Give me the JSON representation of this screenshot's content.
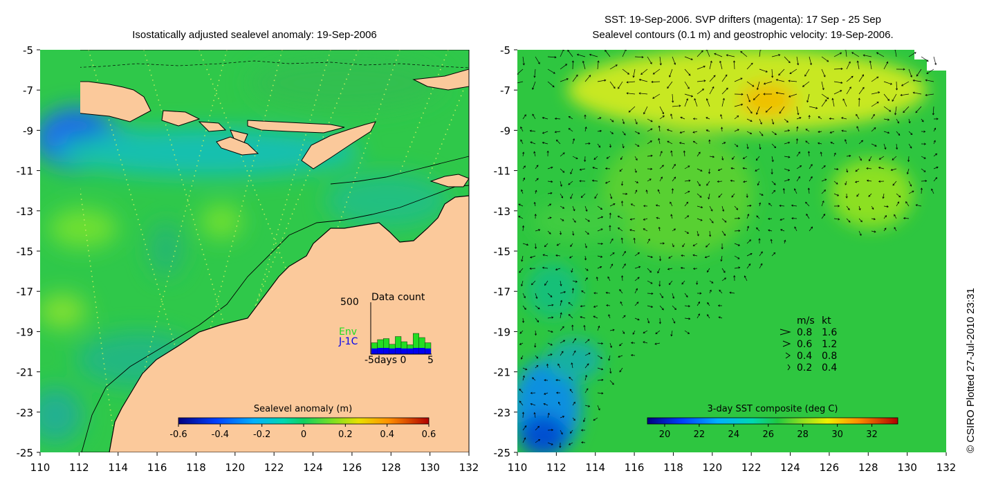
{
  "left_panel": {
    "title": "Isostatically adjusted sealevel anomaly: 19-Sep-2006",
    "x_ticks": [
      "110",
      "112",
      "114",
      "116",
      "118",
      "120",
      "122",
      "124",
      "126",
      "128",
      "130",
      "132"
    ],
    "y_ticks": [
      "-5",
      "-7",
      "-9",
      "-11",
      "-13",
      "-15",
      "-17",
      "-19",
      "-21",
      "-23",
      "-25"
    ],
    "colorbar": {
      "title": "Sealevel anomaly (m)",
      "ticks": [
        "-0.6",
        "-0.4",
        "-0.2",
        "0",
        "0.2",
        "0.4",
        "0.6"
      ],
      "range": [
        -0.6,
        0.6
      ]
    },
    "data_count": {
      "title": "Data count",
      "ymax_label": "500",
      "xlabel": "-5days 0",
      "xmax_label": "5",
      "series": [
        {
          "name": "Env",
          "color": "#22dd22"
        },
        {
          "name": "J-1C",
          "color": "#0000ee"
        }
      ],
      "env_values": [
        110,
        140,
        150,
        95,
        170,
        120,
        90,
        200,
        160,
        110
      ],
      "j1c_values": [
        55,
        60,
        60,
        55,
        60,
        55,
        55,
        60,
        60,
        55
      ]
    }
  },
  "right_panel": {
    "title_line1": "SST: 19-Sep-2006. SVP drifters (magenta): 17 Sep - 25 Sep",
    "title_line2": "Sealevel contours (0.1 m) and geostrophic velocity: 19-Sep-2006.",
    "x_ticks": [
      "110",
      "112",
      "114",
      "116",
      "118",
      "120",
      "122",
      "124",
      "126",
      "128",
      "130",
      "132"
    ],
    "y_ticks": [
      "-5",
      "-7",
      "-9",
      "-11",
      "-13",
      "-15",
      "-17",
      "-19",
      "-21",
      "-23",
      "-25"
    ],
    "colorbar": {
      "title": "3-day SST composite (deg C)",
      "ticks": [
        "20",
        "22",
        "24",
        "26",
        "28",
        "30",
        "32"
      ],
      "range": [
        19,
        33.5
      ]
    },
    "velocity_legend": {
      "header_ms": "m/s",
      "header_kt": "kt",
      "rows": [
        {
          "ms": "0.8",
          "kt": "1.6"
        },
        {
          "ms": "0.6",
          "kt": "1.2"
        },
        {
          "ms": "0.4",
          "kt": "0.8"
        },
        {
          "ms": "0.2",
          "kt": "0.4"
        }
      ]
    }
  },
  "credit": "© CSIRO Plotted 27-Jul-2010 23:31",
  "colors": {
    "land": "#fbc99b",
    "ocean_green": "#2fc84a",
    "coast": "#000000"
  }
}
